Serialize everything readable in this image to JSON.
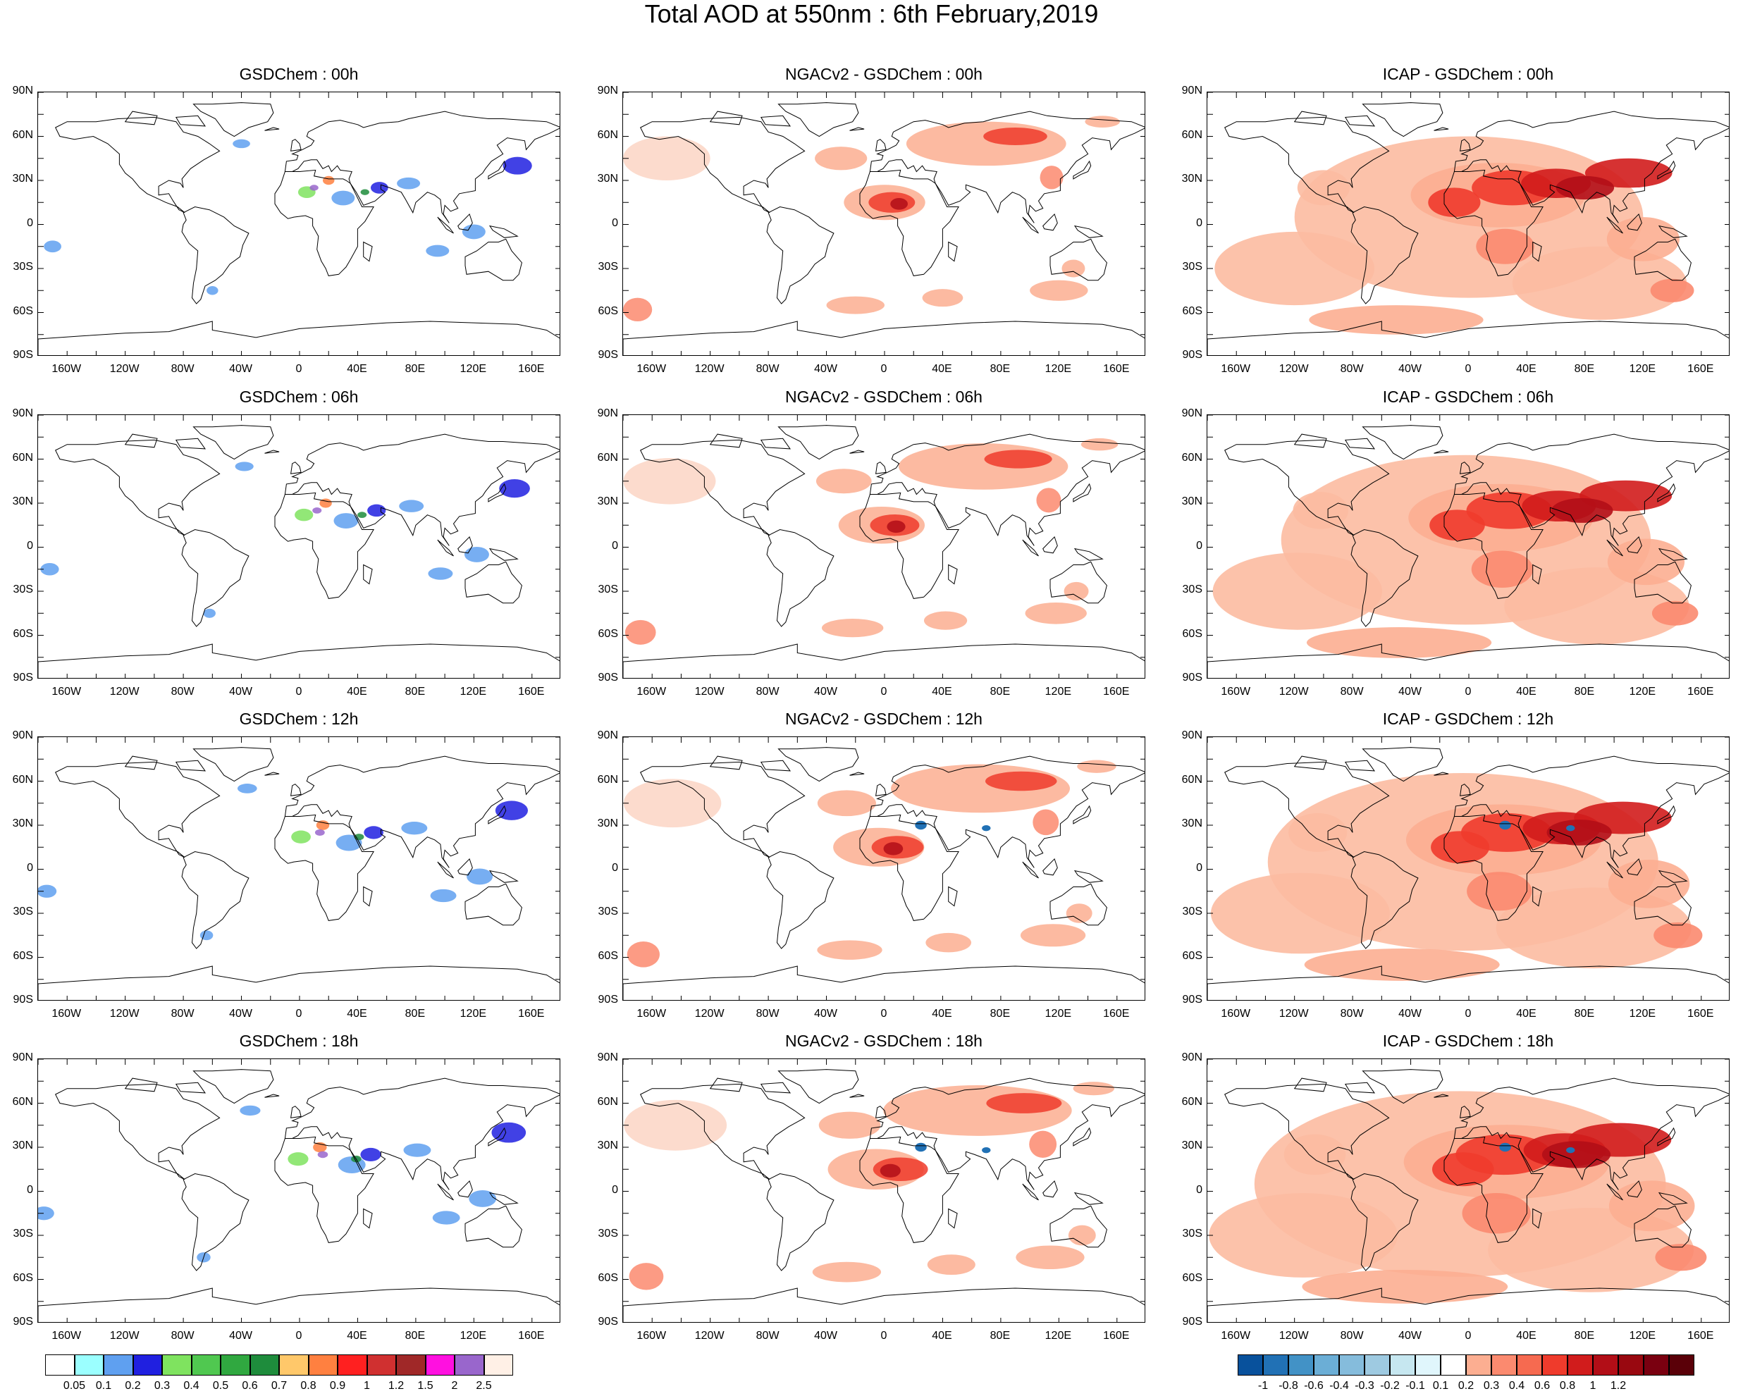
{
  "title": "Total AOD at 550nm : 6th February,2019",
  "lat_labels": [
    "90N",
    "60N",
    "30N",
    "0",
    "30S",
    "60S",
    "90S"
  ],
  "lon_labels": [
    "160W",
    "120W",
    "80W",
    "40W",
    "0",
    "40E",
    "80E",
    "120E",
    "160E"
  ],
  "panels": [
    {
      "title": "GSDChem : 00h",
      "kind": "aod",
      "level": 0
    },
    {
      "title": "NGACv2 - GSDChem : 00h",
      "kind": "ngac",
      "level": 0
    },
    {
      "title": "ICAP - GSDChem : 00h",
      "kind": "icap",
      "level": 0
    },
    {
      "title": "GSDChem : 06h",
      "kind": "aod",
      "level": 1
    },
    {
      "title": "NGACv2 - GSDChem : 06h",
      "kind": "ngac",
      "level": 1
    },
    {
      "title": "ICAP - GSDChem : 06h",
      "kind": "icap",
      "level": 1
    },
    {
      "title": "GSDChem : 12h",
      "kind": "aod",
      "level": 2
    },
    {
      "title": "NGACv2 - GSDChem : 12h",
      "kind": "ngac",
      "level": 2
    },
    {
      "title": "ICAP - GSDChem : 12h",
      "kind": "icap",
      "level": 2
    },
    {
      "title": "GSDChem : 18h",
      "kind": "aod",
      "level": 3
    },
    {
      "title": "NGACv2 - GSDChem : 18h",
      "kind": "ngac",
      "level": 3
    },
    {
      "title": "ICAP - GSDChem : 18h",
      "kind": "icap",
      "level": 3
    }
  ],
  "colorbar_aod": {
    "colors": [
      "#ffffff",
      "#9bffff",
      "#5fa0f0",
      "#2020e0",
      "#7fe35f",
      "#50c850",
      "#30a840",
      "#1e8c3c",
      "#ffc86a",
      "#ff8040",
      "#ff2020",
      "#d03030",
      "#a02828",
      "#ff10e0",
      "#9966cc",
      "#fff0e6"
    ],
    "ticks": [
      "0.05",
      "0.1",
      "0.2",
      "0.3",
      "0.4",
      "0.5",
      "0.6",
      "0.7",
      "0.8",
      "0.9",
      "1",
      "1.2",
      "1.5",
      "2",
      "2.5"
    ]
  },
  "colorbar_diff": {
    "colors": [
      "#08519c",
      "#2171b5",
      "#4292c6",
      "#6baed6",
      "#85bcdc",
      "#9ecae1",
      "#c6e7f0",
      "#e0f6fc",
      "#ffffff",
      "#fcae91",
      "#fb8a6f",
      "#f66a50",
      "#ef3b2c",
      "#d11c1c",
      "#b20e17",
      "#990810",
      "#7a0010",
      "#5a0008"
    ],
    "ticks": [
      "-1",
      "-0.8",
      "-0.6",
      "-0.4",
      "-0.3",
      "-0.2",
      "-0.1",
      "0.1",
      "0.2",
      "0.3",
      "0.4",
      "0.6",
      "0.8",
      "1",
      "1.2"
    ]
  }
}
